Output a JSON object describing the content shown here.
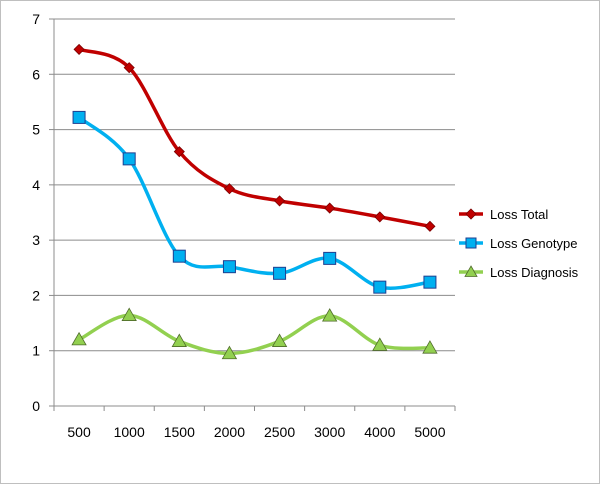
{
  "chart_data": {
    "type": "line",
    "title": "",
    "xlabel": "",
    "ylabel": "",
    "categories": [
      "500",
      "1000",
      "1500",
      "2000",
      "2500",
      "3000",
      "4000",
      "5000"
    ],
    "ylim": [
      0,
      7
    ],
    "yticks": [
      "0",
      "1",
      "2",
      "3",
      "4",
      "5",
      "6",
      "7"
    ],
    "grid": true,
    "smooth": true,
    "legend": "right",
    "series": [
      {
        "name": "Loss Total",
        "color": "#c00000",
        "marker": "diamond",
        "values": [
          6.45,
          6.12,
          4.6,
          3.93,
          3.71,
          3.58,
          3.42,
          3.25
        ]
      },
      {
        "name": "Loss Genotype",
        "color": "#00b0f0",
        "marker": "square",
        "values": [
          5.22,
          4.47,
          2.71,
          2.52,
          2.4,
          2.67,
          2.15,
          2.24
        ]
      },
      {
        "name": "Loss Diagnosis",
        "color": "#92d050",
        "marker": "triangle",
        "values": [
          1.2,
          1.64,
          1.17,
          0.95,
          1.17,
          1.63,
          1.1,
          1.05
        ]
      }
    ]
  }
}
